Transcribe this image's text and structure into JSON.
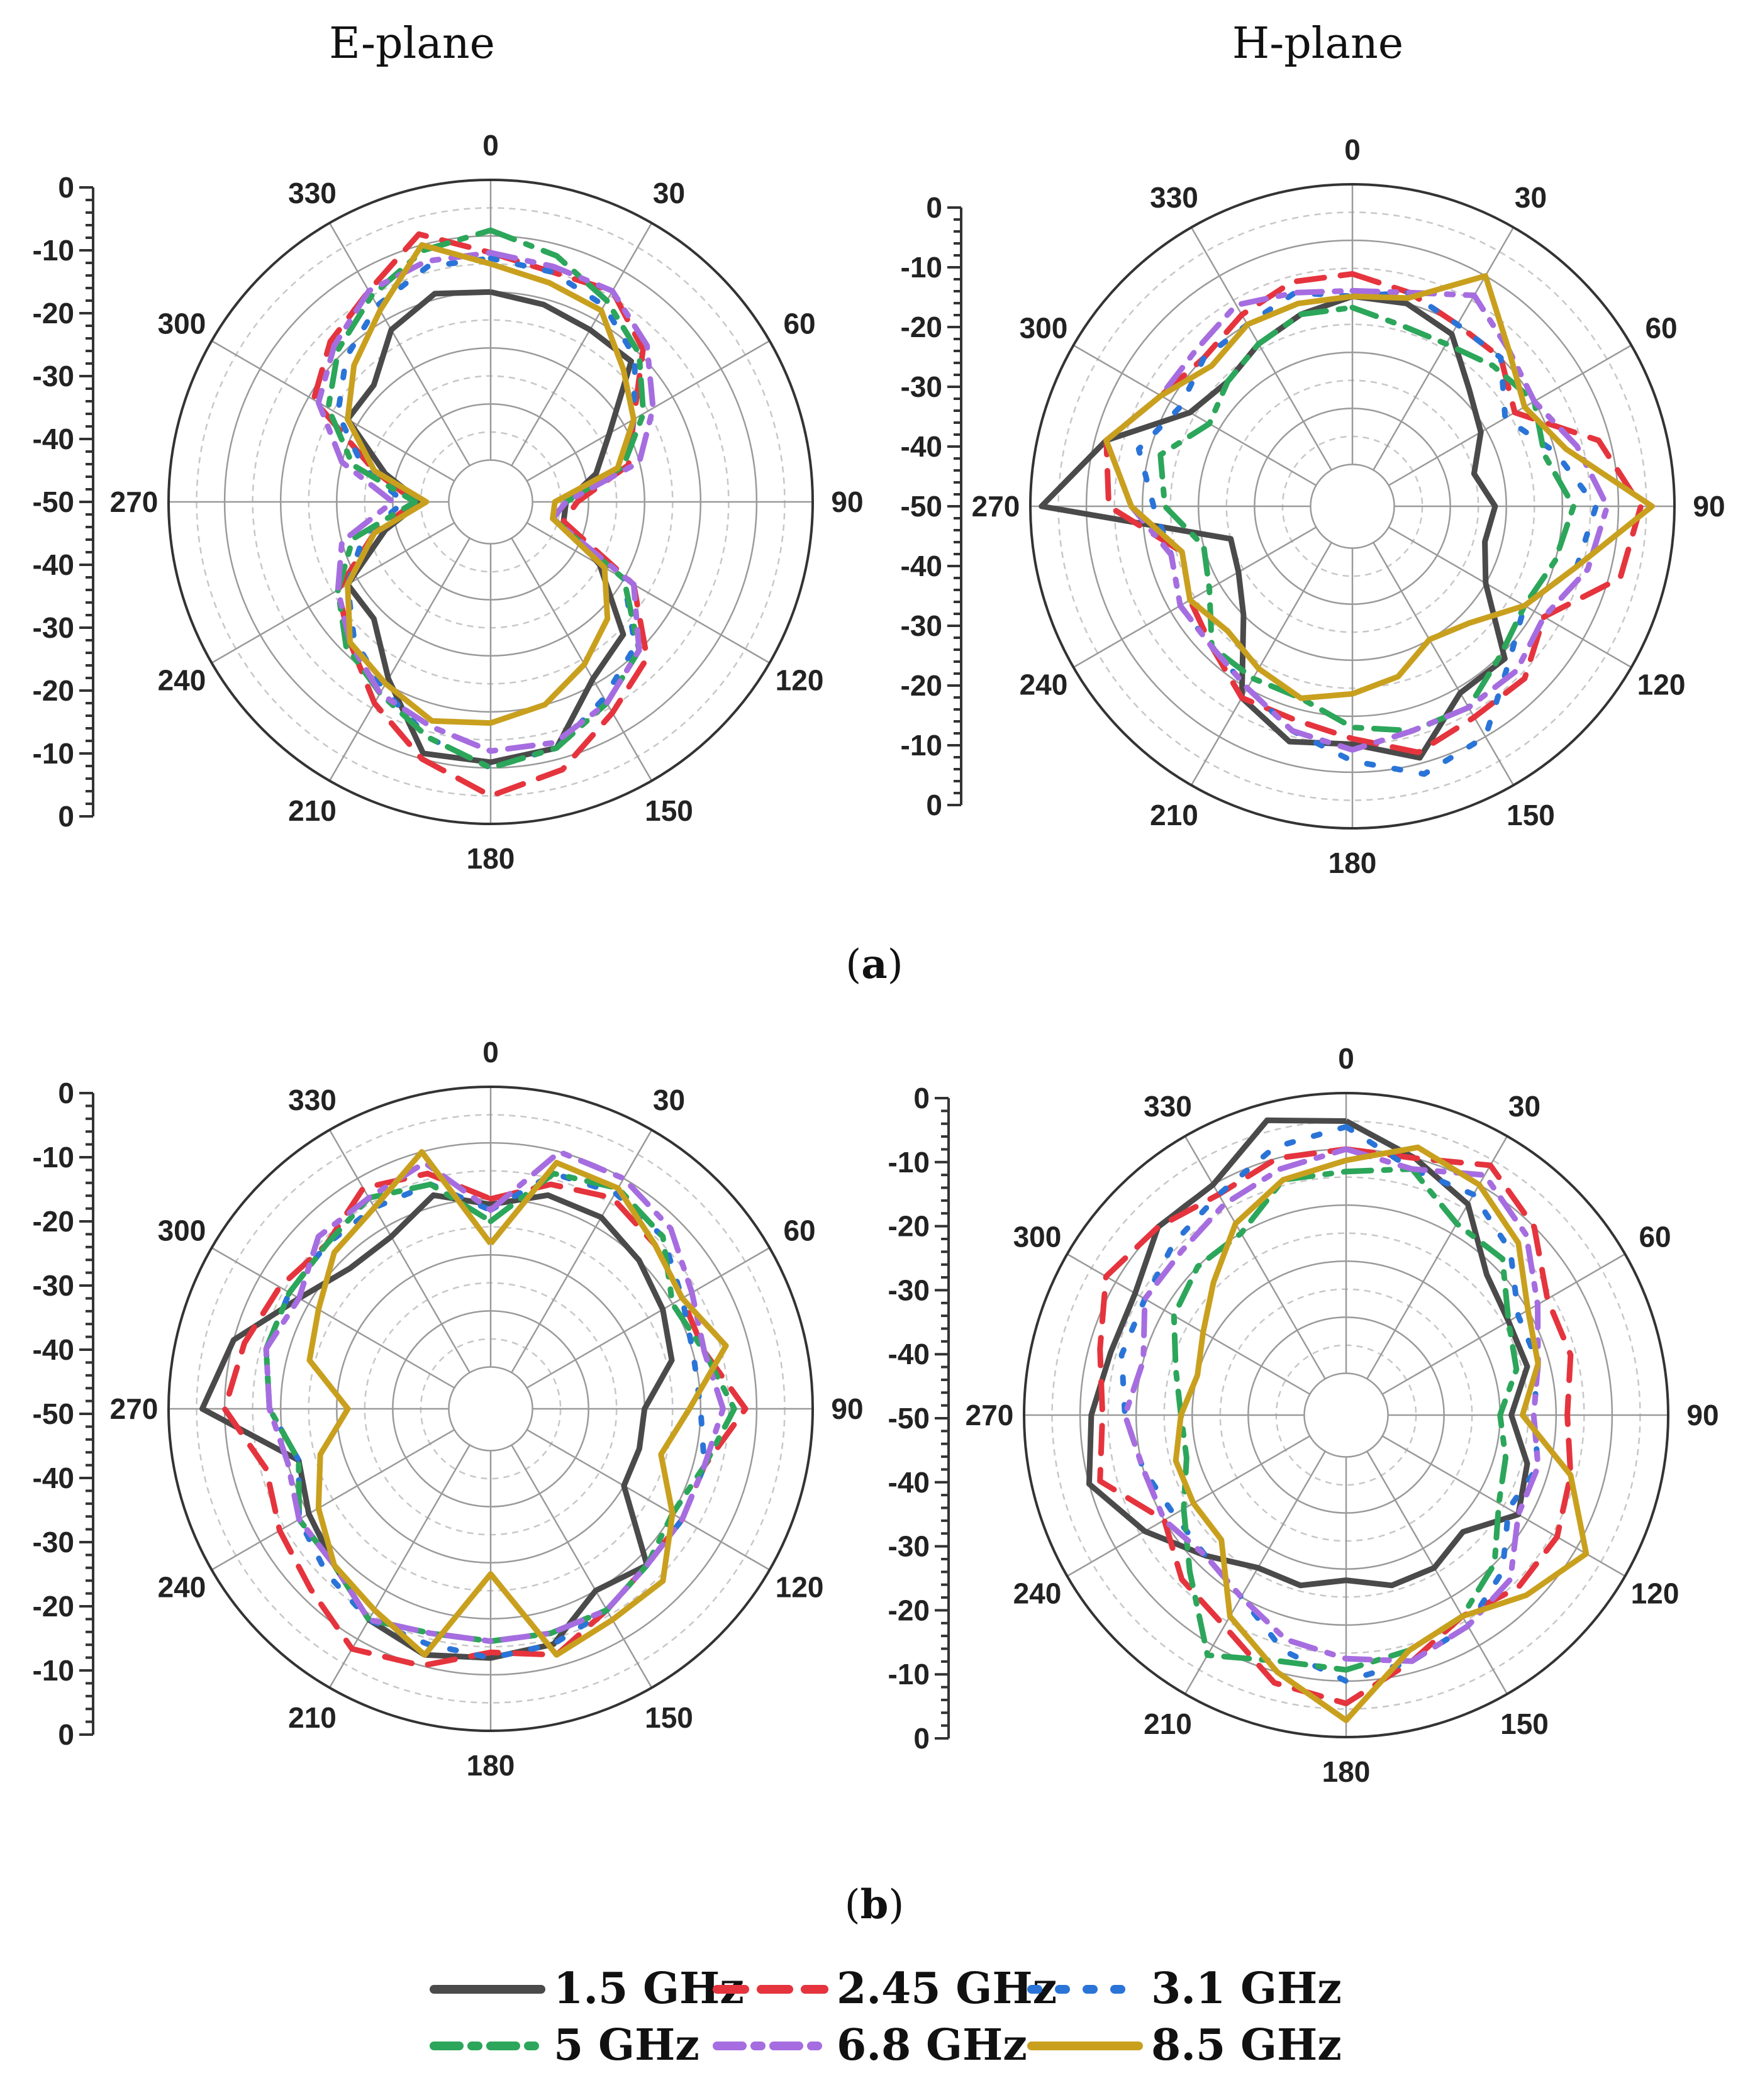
{
  "column_titles": [
    "E-plane",
    "H-plane"
  ],
  "row_captions": [
    {
      "open": "(",
      "letter": "a",
      "close": ")"
    },
    {
      "open": "(",
      "letter": "b",
      "close": ")"
    }
  ],
  "angle_labels": [
    "0",
    "30",
    "60",
    "90",
    "120",
    "150",
    "180",
    "210",
    "240",
    "270",
    "300",
    "330"
  ],
  "radial_scale_labels": [
    "0",
    "-10",
    "-20",
    "-30",
    "-40",
    "-50",
    "-40",
    "-30",
    "-20",
    "-10",
    "0"
  ],
  "legend": [
    {
      "label": "1.5 GHz",
      "color": "#4a4a4a",
      "style": "solid"
    },
    {
      "label": "2.45 GHz",
      "color": "#e5343d",
      "style": "dash"
    },
    {
      "label": "3.1 GHz",
      "color": "#2a74d8",
      "style": "dot"
    },
    {
      "label": "5 GHz",
      "color": "#2ca65a",
      "style": "dash-dot"
    },
    {
      "label": "6.8 GHz",
      "color": "#a66de0",
      "style": "dash-dot"
    },
    {
      "label": "8.5 GHz",
      "color": "#c9a01e",
      "style": "solid"
    }
  ],
  "chart_data": [
    {
      "type": "polar-line",
      "panel": "a",
      "plane": "E-plane",
      "r_range": [
        -50,
        0
      ],
      "angle_step": 15,
      "series": [
        {
          "name": "1.5 GHz",
          "values": [
            -20,
            -21,
            -22,
            -22,
            -33,
            -38,
            -44,
            -44,
            -35,
            -24,
            -21,
            -12,
            -11,
            -11,
            -21,
            -28,
            -28,
            -38,
            -45,
            -38,
            -28,
            -28,
            -22,
            -19
          ]
        },
        {
          "name": "2.45 GHz",
          "values": [
            -13,
            -15,
            -14,
            -19,
            -28,
            -32,
            -42,
            -44,
            -28,
            -18,
            -14,
            -8,
            -5,
            -10,
            -16,
            -22,
            -26,
            -36,
            -44,
            -36,
            -21,
            -17,
            -14,
            -8
          ]
        },
        {
          "name": "3.1 GHz",
          "values": [
            -14,
            -15,
            -17,
            -21,
            -28,
            -33,
            -44,
            -46,
            -30,
            -21,
            -17,
            -12,
            -10,
            -14,
            -19,
            -23,
            -28,
            -34,
            -42,
            -34,
            -26,
            -21,
            -17,
            -14
          ]
        },
        {
          "name": "5 GHz",
          "values": [
            -9,
            -12,
            -16,
            -20,
            -26,
            -33,
            -44,
            -46,
            -30,
            -20,
            -16,
            -12,
            -10,
            -14,
            -18,
            -21,
            -26,
            -32,
            -44,
            -32,
            -24,
            -19,
            -15,
            -11
          ]
        },
        {
          "name": "6.8 GHz",
          "values": [
            -13,
            -14,
            -14,
            -18,
            -24,
            -30,
            -44,
            -46,
            -28,
            -20,
            -16,
            -13,
            -13,
            -16,
            -18,
            -22,
            -26,
            -30,
            -40,
            -30,
            -22,
            -18,
            -14,
            -13
          ]
        },
        {
          "name": "8.5 GHz",
          "values": [
            -15,
            -17,
            -18,
            -24,
            -28,
            -34,
            -46,
            -46,
            -34,
            -28,
            -24,
            -20,
            -18,
            -17,
            -20,
            -22,
            -28,
            -36,
            -46,
            -36,
            -28,
            -23,
            -18,
            -10
          ]
        }
      ]
    },
    {
      "type": "polar-line",
      "panel": "a",
      "plane": "H-plane",
      "r_range": [
        -50,
        0
      ],
      "angle_step": 15,
      "series": [
        {
          "name": "1.5 GHz",
          "values": [
            -20,
            -20,
            -22,
            -28,
            -31,
            -35,
            -32,
            -33,
            -30,
            -19,
            -19,
            -11,
            -15,
            -14,
            -18,
            -30,
            -34,
            -35,
            -2,
            -12,
            -24,
            -26,
            -24,
            -22
          ]
        },
        {
          "name": "2.45 GHz",
          "values": [
            -16,
            -18,
            -20,
            -20,
            -24,
            -12,
            -6,
            -8,
            -18,
            -14,
            -14,
            -12,
            -16,
            -18,
            -18,
            -22,
            -24,
            -26,
            -14,
            -12,
            -18,
            -20,
            -18,
            -16
          ]
        },
        {
          "name": "3.1 GHz",
          "values": [
            -20,
            -18,
            -20,
            -20,
            -26,
            -20,
            -14,
            -16,
            -22,
            -18,
            -10,
            -8,
            -12,
            -16,
            -20,
            -22,
            -22,
            -24,
            -22,
            -18,
            -22,
            -20,
            -20,
            -18
          ]
        },
        {
          "name": "5 GHz",
          "values": [
            -22,
            -24,
            -24,
            -22,
            -20,
            -22,
            -18,
            -20,
            -22,
            -20,
            -16,
            -16,
            -18,
            -22,
            -22,
            -22,
            -28,
            -30,
            -24,
            -22,
            -28,
            -26,
            -24,
            -22
          ]
        },
        {
          "name": "6.8 GHz",
          "values": [
            -19,
            -18,
            -14,
            -18,
            -20,
            -16,
            -12,
            -14,
            -18,
            -16,
            -16,
            -16,
            -14,
            -16,
            -20,
            -22,
            -22,
            -24,
            -18,
            -12,
            -18,
            -18,
            -16,
            -18
          ]
        },
        {
          "name": "8.5 GHz",
          "values": [
            -20,
            -19,
            -10,
            -18,
            -22,
            -18,
            -4,
            -16,
            -22,
            -28,
            -30,
            -26,
            -24,
            -22,
            -24,
            -26,
            -24,
            -26,
            -18,
            -12,
            -18,
            -22,
            -20,
            -20
          ]
        }
      ]
    },
    {
      "type": "polar-line",
      "panel": "b",
      "plane": "E-plane",
      "r_range": [
        -50,
        0
      ],
      "angle_step": 15,
      "series": [
        {
          "name": "1.5 GHz",
          "values": [
            -21,
            -18,
            -18,
            -20,
            -22,
            -24,
            -30,
            -30,
            -30,
            -18,
            -20,
            -14,
            -13,
            -12,
            -14,
            -18,
            -20,
            -22,
            -6,
            -10,
            -18,
            -22,
            -22,
            -18
          ]
        },
        {
          "name": "2.45 GHz",
          "values": [
            -20,
            -16,
            -14,
            -16,
            -18,
            -18,
            -12,
            -18,
            -18,
            -18,
            -16,
            -12,
            -14,
            -10,
            -8,
            -12,
            -14,
            -16,
            -10,
            -12,
            -14,
            -16,
            -12,
            -14
          ]
        },
        {
          "name": "3.1 GHz",
          "values": [
            -22,
            -14,
            -13,
            -14,
            -18,
            -20,
            -20,
            -18,
            -18,
            -18,
            -16,
            -14,
            -13,
            -14,
            -14,
            -16,
            -18,
            -22,
            -18,
            -16,
            -16,
            -16,
            -16,
            -16
          ]
        },
        {
          "name": "5 GHz",
          "values": [
            -24,
            -14,
            -12,
            -14,
            -20,
            -18,
            -14,
            -18,
            -20,
            -18,
            -16,
            -16,
            -16,
            -16,
            -14,
            -18,
            -18,
            -22,
            -18,
            -16,
            -16,
            -16,
            -14,
            -16
          ]
        },
        {
          "name": "6.8 GHz",
          "values": [
            -22,
            -10,
            -10,
            -12,
            -16,
            -18,
            -16,
            -18,
            -18,
            -18,
            -16,
            -16,
            -16,
            -16,
            -14,
            -18,
            -18,
            -20,
            -18,
            -16,
            -18,
            -14,
            -14,
            -12
          ]
        },
        {
          "name": "8.5 GHz",
          "values": [
            -28,
            -12,
            -12,
            -16,
            -18,
            -14,
            -22,
            -26,
            -20,
            -14,
            -14,
            -12,
            -28,
            -12,
            -16,
            -18,
            -22,
            -26,
            -32,
            -24,
            -22,
            -18,
            -16,
            -10
          ]
        }
      ]
    },
    {
      "type": "polar-line",
      "panel": "b",
      "plane": "H-plane",
      "r_range": [
        -50,
        0
      ],
      "angle_step": 15,
      "series": [
        {
          "name": "1.5 GHz",
          "values": [
            -5,
            -10,
            -14,
            -22,
            -24,
            -24,
            -28,
            -24,
            -22,
            -28,
            -26,
            -26,
            -28,
            -26,
            -26,
            -22,
            -16,
            -10,
            -12,
            -14,
            -14,
            -10,
            -10,
            -3
          ]
        },
        {
          "name": "2.45 GHz",
          "values": [
            -10,
            -10,
            -6,
            -10,
            -16,
            -16,
            -18,
            -16,
            -14,
            -14,
            -16,
            -12,
            -6,
            -8,
            -14,
            -16,
            -20,
            -12,
            -14,
            -12,
            -8,
            -10,
            -12,
            -10
          ]
        },
        {
          "name": "3.1 GHz",
          "values": [
            -6,
            -12,
            -12,
            -16,
            -22,
            -22,
            -24,
            -22,
            -24,
            -18,
            -14,
            -12,
            -10,
            -14,
            -20,
            -22,
            -22,
            -20,
            -18,
            -16,
            -16,
            -14,
            -12,
            -8
          ]
        },
        {
          "name": "5 GHz",
          "values": [
            -14,
            -12,
            -18,
            -18,
            -24,
            -26,
            -30,
            -28,
            -26,
            -20,
            -16,
            -14,
            -12,
            -12,
            -8,
            -18,
            -24,
            -28,
            -28,
            -26,
            -22,
            -20,
            -20,
            -14
          ]
        },
        {
          "name": "6.8 GHz",
          "values": [
            -10,
            -12,
            -8,
            -12,
            -18,
            -22,
            -24,
            -22,
            -22,
            -16,
            -14,
            -12,
            -14,
            -16,
            -20,
            -22,
            -20,
            -20,
            -18,
            -20,
            -16,
            -16,
            -14,
            -12
          ]
        },
        {
          "name": "8.5 GHz",
          "values": [
            -12,
            -8,
            -10,
            -14,
            -20,
            -22,
            -26,
            -16,
            -8,
            -12,
            -16,
            -14,
            -3,
            -10,
            -16,
            -26,
            -26,
            -26,
            -28,
            -30,
            -28,
            -24,
            -18,
            -14
          ]
        }
      ]
    }
  ]
}
